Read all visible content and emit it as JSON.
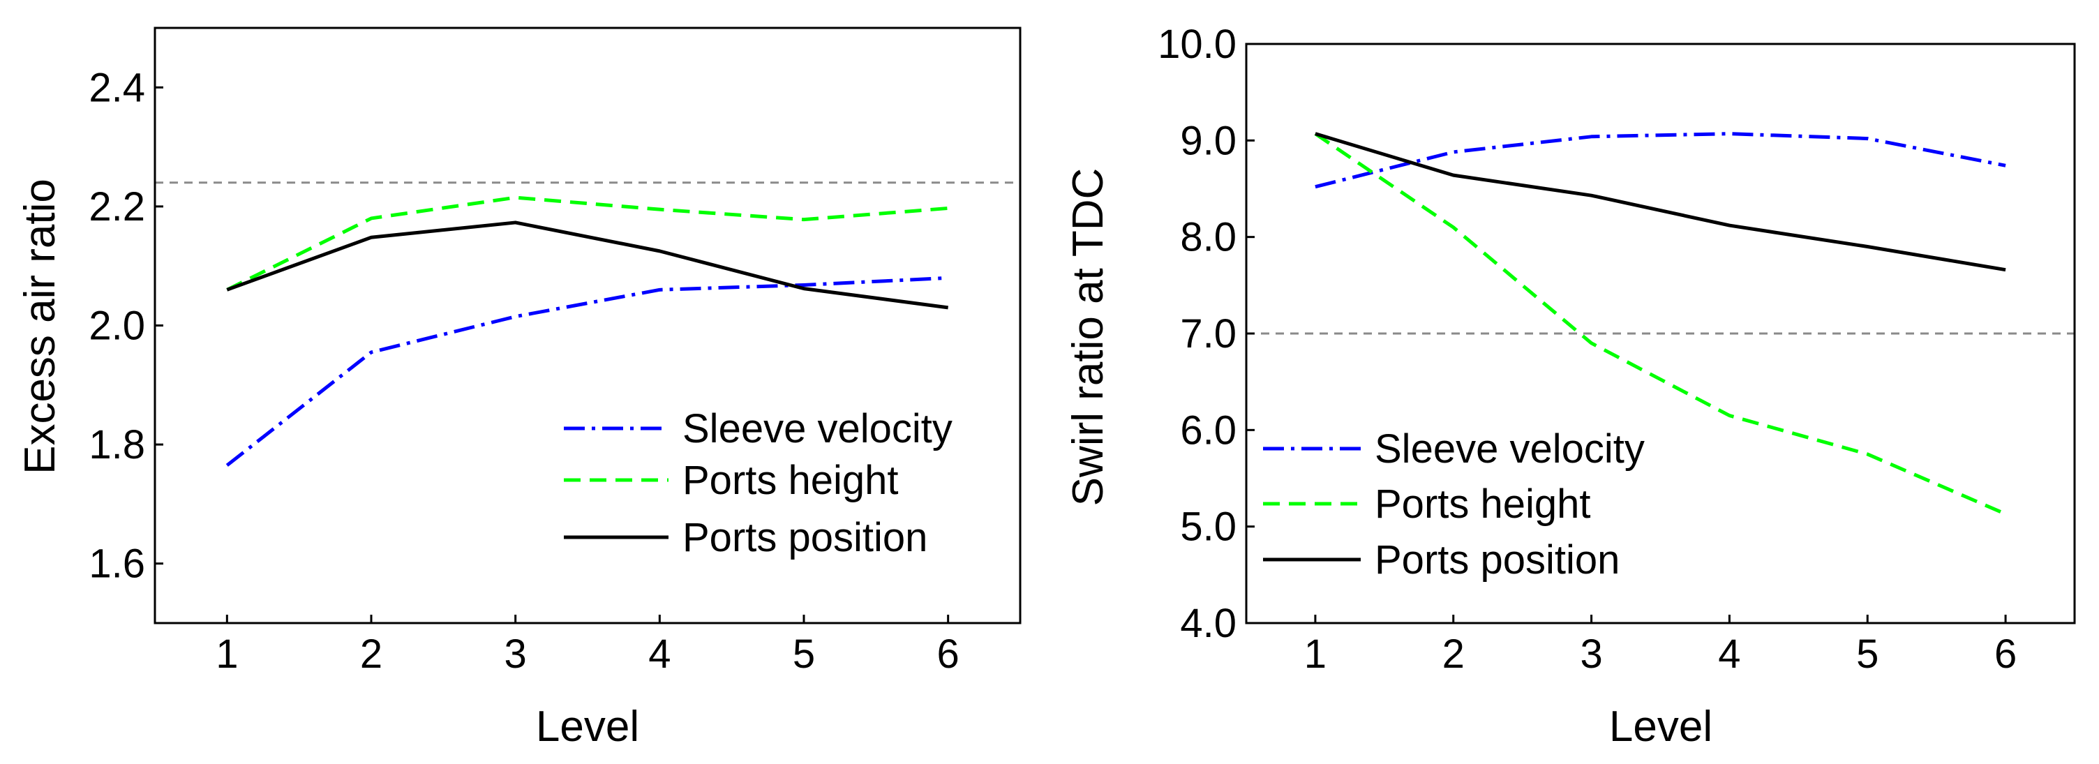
{
  "chart_data": [
    {
      "type": "line",
      "title": "",
      "xlabel": "Level",
      "ylabel": "Excess air ratio",
      "x": [
        1,
        2,
        3,
        4,
        5,
        6
      ],
      "xticks": [
        "1",
        "2",
        "3",
        "4",
        "5",
        "6"
      ],
      "xlim": [
        0.5,
        6.5
      ],
      "ylim": [
        1.5,
        2.5
      ],
      "yticks": [
        "1.6",
        "1.8",
        "2.0",
        "2.2",
        "2.4"
      ],
      "ytick_values": [
        1.6,
        1.8,
        2.0,
        2.2,
        2.4
      ],
      "reference_line": 2.24,
      "legend_position": "bottom-right",
      "series": [
        {
          "name": "Sleeve velocity",
          "values": [
            1.765,
            1.955,
            2.015,
            2.06,
            2.068,
            2.08
          ],
          "color": "#0000ff",
          "style": "dashdot"
        },
        {
          "name": "Ports height",
          "values": [
            2.06,
            2.18,
            2.215,
            2.195,
            2.178,
            2.197
          ],
          "color": "#00ff00",
          "style": "dashed"
        },
        {
          "name": "Ports position",
          "values": [
            2.06,
            2.148,
            2.173,
            2.125,
            2.062,
            2.03
          ],
          "color": "#000000",
          "style": "solid"
        }
      ]
    },
    {
      "type": "line",
      "title": "",
      "xlabel": "Level",
      "ylabel": "Swirl ratio at TDC",
      "x": [
        1,
        2,
        3,
        4,
        5,
        6
      ],
      "xticks": [
        "1",
        "2",
        "3",
        "4",
        "5",
        "6"
      ],
      "xlim": [
        0.5,
        6.5
      ],
      "ylim": [
        4.0,
        10.0
      ],
      "yticks": [
        "4.0",
        "5.0",
        "6.0",
        "7.0",
        "8.0",
        "9.0",
        "10.0"
      ],
      "ytick_values": [
        4,
        5,
        6,
        7,
        8,
        9,
        10
      ],
      "reference_line": 7.0,
      "legend_position": "bottom-left",
      "series": [
        {
          "name": "Sleeve velocity",
          "values": [
            8.52,
            8.88,
            9.04,
            9.07,
            9.02,
            8.74
          ],
          "color": "#0000ff",
          "style": "dashdot"
        },
        {
          "name": "Ports height",
          "values": [
            9.07,
            8.1,
            6.9,
            6.15,
            5.75,
            5.13
          ],
          "color": "#00ff00",
          "style": "dashed"
        },
        {
          "name": "Ports position",
          "values": [
            9.07,
            8.64,
            8.43,
            8.12,
            7.9,
            7.66
          ],
          "color": "#000000",
          "style": "solid"
        }
      ]
    }
  ]
}
